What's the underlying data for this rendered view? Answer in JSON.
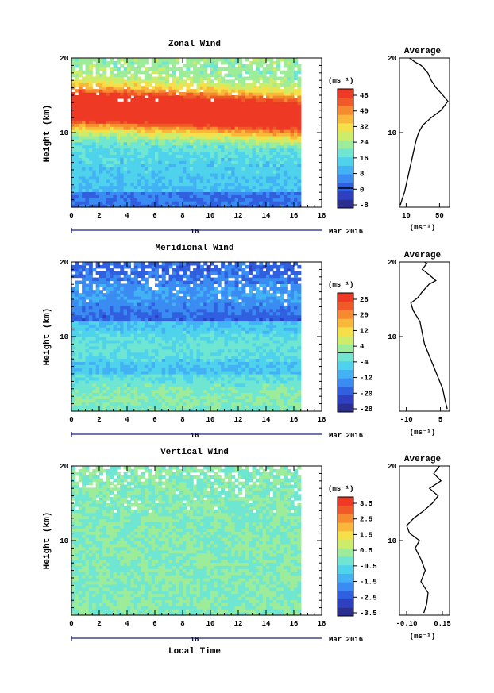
{
  "chart_data": [
    {
      "type": "heatmap",
      "title": "Zonal Wind",
      "ylabel": "Height (km)",
      "xlabel": "",
      "xlim": [
        0,
        18
      ],
      "ylim": [
        0,
        20
      ],
      "x_ticks": [
        "0",
        "2",
        "4",
        "6",
        "8",
        "10",
        "12",
        "14",
        "16",
        "18"
      ],
      "y_ticks": [
        "10",
        "20"
      ],
      "date_marker": "16",
      "date_label": "Mar 2016",
      "colorbar": {
        "unit": "(ms⁻¹)",
        "range": [
          -10,
          50
        ],
        "labels": [
          "48",
          "40",
          "32",
          "24",
          "16",
          "8",
          "0",
          "-8"
        ],
        "zero_line": true
      },
      "data_end_x": 16.5,
      "profile": {
        "title": "Average",
        "xlabel": "(ms⁻¹)",
        "x_ticks": [
          "10",
          "50"
        ],
        "y_ticks": [
          "10",
          "20"
        ],
        "xlim": [
          2,
          62
        ],
        "points": [
          [
            3,
            0.3
          ],
          [
            5,
            1.0
          ],
          [
            8,
            2.0
          ],
          [
            10,
            3.0
          ],
          [
            12,
            4.0
          ],
          [
            14,
            5.0
          ],
          [
            16,
            6.0
          ],
          [
            18,
            7.0
          ],
          [
            20,
            8.0
          ],
          [
            22,
            9.0
          ],
          [
            25,
            10.0
          ],
          [
            30,
            11.0
          ],
          [
            40,
            12.0
          ],
          [
            52,
            13.0
          ],
          [
            60,
            14.2
          ],
          [
            54,
            15.0
          ],
          [
            46,
            16.0
          ],
          [
            40,
            17.0
          ],
          [
            36,
            18.0
          ],
          [
            28,
            19.0
          ],
          [
            20,
            19.5
          ],
          [
            14,
            20.0
          ]
        ]
      }
    },
    {
      "type": "heatmap",
      "title": "Meridional Wind",
      "ylabel": "Height (km)",
      "xlabel": "",
      "xlim": [
        0,
        18
      ],
      "ylim": [
        0,
        20
      ],
      "x_ticks": [
        "0",
        "2",
        "4",
        "6",
        "8",
        "10",
        "12",
        "14",
        "16",
        "18"
      ],
      "y_ticks": [
        "10",
        "20"
      ],
      "date_marker": "16",
      "date_label": "Mar 2016",
      "colorbar": {
        "unit": "(ms⁻¹)",
        "range": [
          -30,
          30
        ],
        "labels": [
          "28",
          "20",
          "12",
          "4",
          "-4",
          "-12",
          "-20",
          "-28"
        ],
        "zero_line": true
      },
      "data_end_x": 16.5,
      "profile": {
        "title": "Average",
        "xlabel": "(ms⁻¹)",
        "x_ticks": [
          "-10",
          "5"
        ],
        "y_ticks": [
          "10",
          "20"
        ],
        "xlim": [
          -13,
          9
        ],
        "points": [
          [
            8,
            0.3
          ],
          [
            7,
            1.5
          ],
          [
            6,
            3.0
          ],
          [
            4,
            4.5
          ],
          [
            2,
            6.0
          ],
          [
            0,
            7.5
          ],
          [
            -2,
            9.0
          ],
          [
            -3,
            10.5
          ],
          [
            -4,
            12.0
          ],
          [
            -7,
            13.5
          ],
          [
            -8,
            14.5
          ],
          [
            -5,
            15.2
          ],
          [
            -3,
            16.0
          ],
          [
            0,
            17.0
          ],
          [
            3,
            17.5
          ],
          [
            0,
            18.3
          ],
          [
            -3,
            19.0
          ],
          [
            -1,
            19.8
          ],
          [
            -2,
            20.0
          ]
        ]
      }
    },
    {
      "type": "heatmap",
      "title": "Vertical Wind",
      "ylabel": "Height (km)",
      "xlabel": "Local Time",
      "xlim": [
        0,
        18
      ],
      "ylim": [
        0,
        20
      ],
      "x_ticks": [
        "0",
        "2",
        "4",
        "6",
        "8",
        "10",
        "12",
        "14",
        "16",
        "18"
      ],
      "y_ticks": [
        "10",
        "20"
      ],
      "date_marker": "16",
      "date_label": "Mar 2016",
      "colorbar": {
        "unit": "(ms⁻¹)",
        "range": [
          -4,
          4
        ],
        "labels": [
          "3.5",
          "2.5",
          "1.5",
          "0.5",
          "-0.5",
          "-1.5",
          "-2.5",
          "-3.5"
        ],
        "zero_line": false
      },
      "data_end_x": 16.5,
      "profile": {
        "title": "Average",
        "xlabel": "(ms⁻¹)",
        "x_ticks": [
          "-0.10",
          "0.15"
        ],
        "y_ticks": [
          "10",
          "20"
        ],
        "xlim": [
          -0.15,
          0.2
        ],
        "points": [
          [
            0.02,
            0.3
          ],
          [
            0.04,
            1.5
          ],
          [
            0.05,
            3.0
          ],
          [
            0.0,
            4.5
          ],
          [
            0.03,
            6.0
          ],
          [
            0.0,
            7.5
          ],
          [
            -0.04,
            9.0
          ],
          [
            -0.01,
            10.0
          ],
          [
            -0.08,
            11.0
          ],
          [
            -0.1,
            12.0
          ],
          [
            -0.05,
            13.0
          ],
          [
            0.02,
            14.0
          ],
          [
            0.08,
            15.0
          ],
          [
            0.12,
            16.0
          ],
          [
            0.06,
            17.0
          ],
          [
            0.14,
            18.0
          ],
          [
            0.09,
            19.0
          ],
          [
            0.13,
            20.0
          ]
        ]
      }
    }
  ]
}
